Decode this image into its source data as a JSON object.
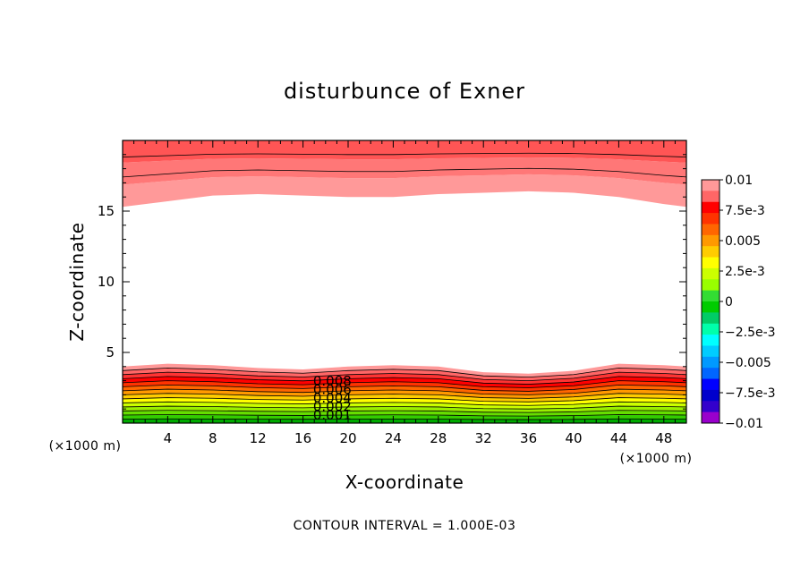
{
  "chart_data": {
    "type": "contour",
    "title": "disturbunce of Exner",
    "xlabel": "X-coordinate",
    "ylabel": "Z-coordinate",
    "x_unit": "(×1000 m)",
    "x_unit_right": "(×1000 m)",
    "xlim": [
      0,
      50
    ],
    "ylim": [
      0,
      20
    ],
    "x_ticks": [
      "4",
      "8",
      "12",
      "16",
      "20",
      "24",
      "28",
      "32",
      "36",
      "40",
      "44",
      "48"
    ],
    "y_ticks": [
      "5",
      "10",
      "15"
    ],
    "colorbar": {
      "range": [
        -0.01,
        0.01
      ],
      "labels": [
        "0.01",
        "7.5e-3",
        "0.005",
        "2.5e-3",
        "0",
        "−2.5e-3",
        "−0.005",
        "−7.5e-3",
        "−0.01"
      ],
      "colors": [
        "#ff9999",
        "#ff6666",
        "#ff0000",
        "#ff3300",
        "#ff6600",
        "#ff9900",
        "#ffcc00",
        "#ffff00",
        "#ccff00",
        "#99ff00",
        "#33dd33",
        "#00cc00",
        "#00cc66",
        "#00ffaa",
        "#00ffff",
        "#00ccff",
        "#0099ff",
        "#0066ff",
        "#0000ff",
        "#0000cc",
        "#3300cc",
        "#9900cc"
      ]
    },
    "bottom_layer_boundaries": [
      {
        "x": 0,
        "z": 4.0
      },
      {
        "x": 4,
        "z": 4.2
      },
      {
        "x": 8,
        "z": 4.1
      },
      {
        "x": 12,
        "z": 3.9
      },
      {
        "x": 16,
        "z": 3.8
      },
      {
        "x": 20,
        "z": 4.0
      },
      {
        "x": 24,
        "z": 4.1
      },
      {
        "x": 28,
        "z": 4.0
      },
      {
        "x": 32,
        "z": 3.6
      },
      {
        "x": 36,
        "z": 3.5
      },
      {
        "x": 40,
        "z": 3.7
      },
      {
        "x": 44,
        "z": 4.2
      },
      {
        "x": 48,
        "z": 4.1
      },
      {
        "x": 50,
        "z": 4.0
      }
    ],
    "top_layer_boundaries": [
      {
        "x": 0,
        "z": 15.3
      },
      {
        "x": 4,
        "z": 15.7
      },
      {
        "x": 8,
        "z": 16.1
      },
      {
        "x": 12,
        "z": 16.2
      },
      {
        "x": 16,
        "z": 16.1
      },
      {
        "x": 20,
        "z": 16.0
      },
      {
        "x": 24,
        "z": 16.0
      },
      {
        "x": 28,
        "z": 16.2
      },
      {
        "x": 32,
        "z": 16.3
      },
      {
        "x": 36,
        "z": 16.4
      },
      {
        "x": 40,
        "z": 16.3
      },
      {
        "x": 44,
        "z": 16.0
      },
      {
        "x": 48,
        "z": 15.5
      },
      {
        "x": 50,
        "z": 15.3
      }
    ],
    "contour_labels": [
      "0.008",
      "0.006",
      "0.004",
      "0.002",
      "0.001"
    ],
    "annotation": "CONTOUR INTERVAL = 1.000E-03"
  }
}
